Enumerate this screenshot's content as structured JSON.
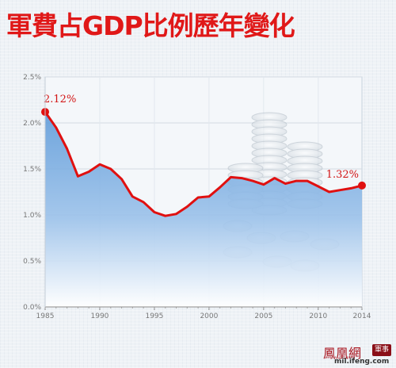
{
  "chart_data": {
    "type": "area",
    "title": "軍費占GDP比例歷年變化",
    "xlabel": "",
    "ylabel": "",
    "x": [
      1985,
      1986,
      1987,
      1988,
      1989,
      1990,
      1991,
      1992,
      1993,
      1994,
      1995,
      1996,
      1997,
      1998,
      1999,
      2000,
      2001,
      2002,
      2003,
      2004,
      2005,
      2006,
      2007,
      2008,
      2009,
      2010,
      2011,
      2012,
      2013,
      2014
    ],
    "values": [
      2.12,
      1.95,
      1.72,
      1.42,
      1.47,
      1.55,
      1.5,
      1.39,
      1.2,
      1.14,
      1.03,
      0.99,
      1.01,
      1.09,
      1.19,
      1.2,
      1.3,
      1.41,
      1.4,
      1.37,
      1.33,
      1.4,
      1.34,
      1.37,
      1.37,
      1.31,
      1.25,
      1.27,
      1.29,
      1.32
    ],
    "xticks": [
      "1985",
      "1990",
      "1995",
      "2000",
      "2005",
      "2010",
      "2014"
    ],
    "yticks": [
      "0.0%",
      "0.5%",
      "1.0%",
      "1.5%",
      "2.0%",
      "2.5%"
    ],
    "ylim": [
      0,
      2.5
    ],
    "xlim": [
      1985,
      2014
    ],
    "annotations": [
      "2.12%",
      "1.32%"
    ],
    "grid": true,
    "colors": {
      "line": "#e01010",
      "area_top": "#6aa3dc",
      "area_bottom": "#ffffff",
      "title": "#e01818"
    }
  },
  "brand": {
    "name": "鳳凰網",
    "badge": "軍事",
    "url": "mil.ifeng.com"
  }
}
